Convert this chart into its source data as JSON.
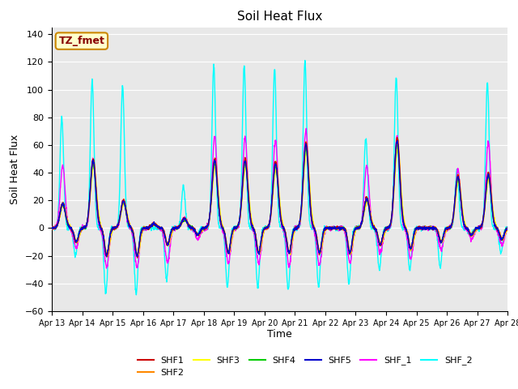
{
  "title": "Soil Heat Flux",
  "xlabel": "Time",
  "ylabel": "Soil Heat Flux",
  "ylim": [
    -60,
    145
  ],
  "yticks": [
    -60,
    -40,
    -20,
    0,
    20,
    40,
    60,
    80,
    100,
    120,
    140
  ],
  "xlim": [
    0,
    15
  ],
  "xtick_labels": [
    "Apr 13",
    "Apr 14",
    "Apr 15",
    "Apr 16",
    "Apr 17",
    "Apr 18",
    "Apr 19",
    "Apr 20",
    "Apr 21",
    "Apr 22",
    "Apr 23",
    "Apr 24",
    "Apr 25",
    "Apr 26",
    "Apr 27",
    "Apr 28"
  ],
  "series_colors": {
    "SHF1": "#cc0000",
    "SHF2": "#ff8800",
    "SHF3": "#ffff00",
    "SHF4": "#00cc00",
    "SHF5": "#0000cc",
    "SHF_1": "#ff00ff",
    "SHF_2": "#00ffff"
  },
  "annotation_text": "TZ_fmet",
  "annotation_bg": "#ffffcc",
  "annotation_border": "#cc8800",
  "fig_bg": "#ffffff",
  "plot_bg": "#e8e8e8",
  "grid_color": "#ffffff",
  "n_days": 15,
  "points_per_day": 144
}
